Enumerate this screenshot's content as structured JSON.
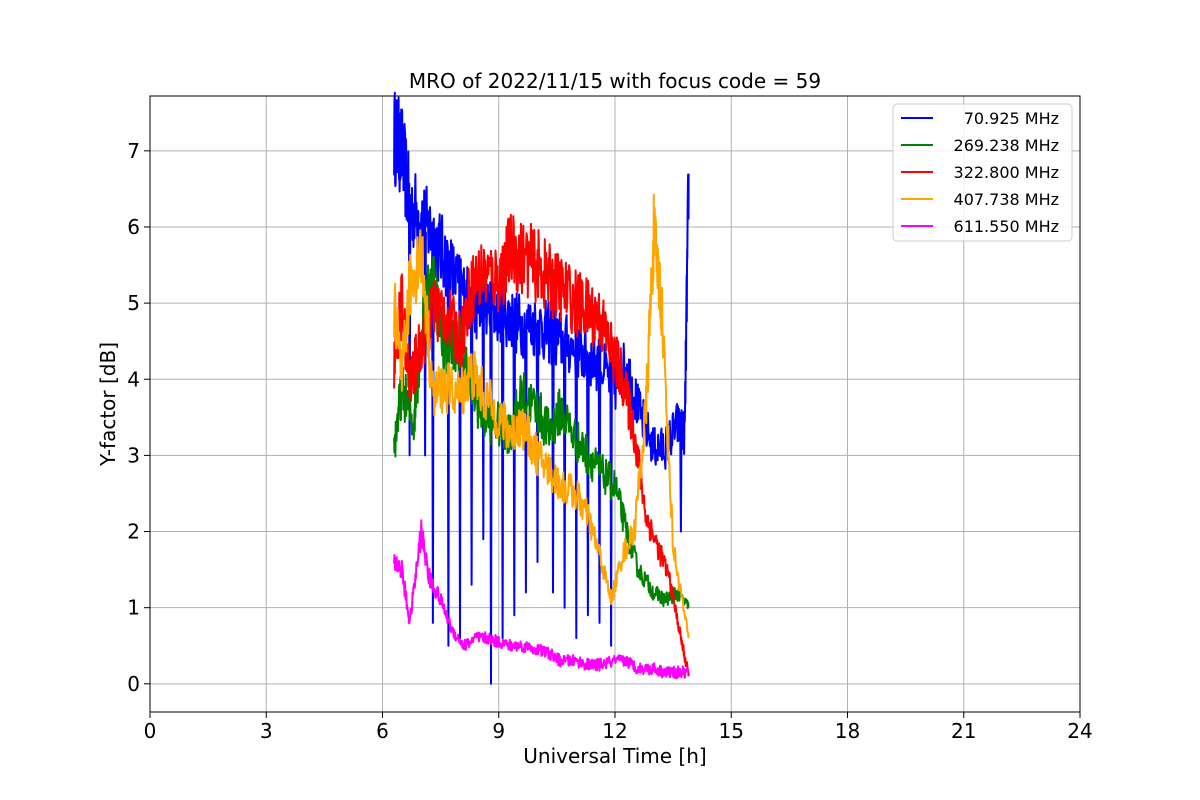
{
  "chart_data": {
    "type": "line",
    "title": "MRO of 2022/11/15 with focus code = 59",
    "xlabel": "Universal Time [h]",
    "ylabel": "Y-factor [dB]",
    "xlim": [
      0,
      24
    ],
    "ylim": [
      -0.37,
      7.72
    ],
    "xticks": [
      0,
      3,
      6,
      9,
      12,
      15,
      18,
      21,
      24
    ],
    "yticks": [
      0,
      1,
      2,
      3,
      4,
      5,
      6,
      7
    ],
    "grid": true,
    "legend_position": "top-right",
    "series": [
      {
        "name": "70.925 MHz",
        "color": "#0000ff",
        "x": [
          6.3,
          6.5,
          6.7,
          7.0,
          7.3,
          7.6,
          8.0,
          8.3,
          8.6,
          9.0,
          9.3,
          9.6,
          10.0,
          10.3,
          10.6,
          11.0,
          11.3,
          11.6,
          12.0,
          12.3,
          12.6,
          13.0,
          13.3,
          13.6,
          13.8,
          13.9
        ],
        "y": [
          7.2,
          7.0,
          6.3,
          6.1,
          5.9,
          5.6,
          5.2,
          5.0,
          4.9,
          4.9,
          4.8,
          4.7,
          4.7,
          4.6,
          4.5,
          4.4,
          4.3,
          4.2,
          3.9,
          4.2,
          3.6,
          3.1,
          3.1,
          3.4,
          3.3,
          6.7
        ],
        "dips": [
          {
            "x": 6.7,
            "y": 3.0
          },
          {
            "x": 7.1,
            "y": 3.0
          },
          {
            "x": 7.3,
            "y": 0.8
          },
          {
            "x": 7.7,
            "y": 0.5
          },
          {
            "x": 8.0,
            "y": 0.6
          },
          {
            "x": 8.3,
            "y": 1.3
          },
          {
            "x": 8.6,
            "y": 1.9
          },
          {
            "x": 8.8,
            "y": 0.0
          },
          {
            "x": 9.1,
            "y": 0.6
          },
          {
            "x": 9.4,
            "y": 0.9
          },
          {
            "x": 9.7,
            "y": 1.2
          },
          {
            "x": 10.0,
            "y": 1.6
          },
          {
            "x": 10.4,
            "y": 1.2
          },
          {
            "x": 10.7,
            "y": 1.0
          },
          {
            "x": 11.0,
            "y": 0.6
          },
          {
            "x": 11.3,
            "y": 0.9
          },
          {
            "x": 11.6,
            "y": 0.8
          },
          {
            "x": 11.9,
            "y": 0.5
          },
          {
            "x": 13.7,
            "y": 2.0
          }
        ]
      },
      {
        "name": "269.238 MHz",
        "color": "#008000",
        "x": [
          6.3,
          6.5,
          6.8,
          7.0,
          7.3,
          7.6,
          8.0,
          8.3,
          8.6,
          9.0,
          9.3,
          9.6,
          10.0,
          10.3,
          10.6,
          11.0,
          11.3,
          11.6,
          12.0,
          12.3,
          12.6,
          13.0,
          13.3,
          13.6,
          13.9
        ],
        "y": [
          3.1,
          3.9,
          3.4,
          4.6,
          5.4,
          4.4,
          4.5,
          3.9,
          3.5,
          3.4,
          3.3,
          3.8,
          3.6,
          3.3,
          3.6,
          3.2,
          3.0,
          2.8,
          2.6,
          2.0,
          1.5,
          1.2,
          1.1,
          1.2,
          1.0
        ]
      },
      {
        "name": "322.800 MHz",
        "color": "#ff0000",
        "x": [
          6.3,
          6.5,
          6.7,
          7.0,
          7.3,
          7.6,
          8.0,
          8.3,
          8.6,
          9.0,
          9.3,
          9.6,
          10.0,
          10.3,
          10.6,
          11.0,
          11.3,
          11.6,
          11.9,
          12.2,
          12.5,
          12.8,
          13.1,
          13.4,
          13.7,
          13.9
        ],
        "y": [
          4.2,
          5.0,
          3.9,
          4.5,
          4.9,
          4.9,
          4.5,
          5.2,
          5.4,
          5.3,
          5.7,
          5.6,
          5.5,
          5.3,
          5.2,
          5.0,
          4.9,
          4.8,
          4.4,
          4.0,
          3.3,
          2.2,
          1.8,
          1.4,
          0.6,
          0.1
        ]
      },
      {
        "name": "407.738 MHz",
        "color": "#ffa500",
        "x": [
          6.3,
          6.5,
          6.7,
          7.0,
          7.3,
          7.6,
          8.0,
          8.3,
          8.6,
          9.0,
          9.3,
          9.6,
          10.0,
          10.3,
          10.6,
          11.0,
          11.3,
          11.6,
          11.9,
          12.2,
          12.5,
          12.8,
          13.0,
          13.2,
          13.5,
          13.9
        ],
        "y": [
          5.0,
          4.0,
          5.2,
          5.7,
          3.8,
          3.9,
          3.8,
          4.1,
          3.8,
          3.5,
          3.3,
          3.4,
          3.0,
          2.8,
          2.6,
          2.5,
          2.2,
          1.7,
          1.1,
          1.7,
          2.0,
          3.6,
          5.9,
          5.0,
          1.8,
          0.6
        ]
      },
      {
        "name": "611.550 MHz",
        "color": "#ff00ff",
        "x": [
          6.3,
          6.5,
          6.7,
          7.0,
          7.2,
          7.5,
          7.8,
          8.1,
          8.4,
          8.7,
          9.0,
          9.3,
          9.6,
          10.0,
          10.3,
          10.6,
          11.0,
          11.3,
          11.6,
          12.0,
          12.3,
          12.6,
          13.0,
          13.3,
          13.6,
          13.9
        ],
        "y": [
          1.6,
          1.5,
          0.8,
          2.0,
          1.4,
          1.1,
          0.7,
          0.5,
          0.6,
          0.6,
          0.55,
          0.5,
          0.5,
          0.45,
          0.4,
          0.3,
          0.3,
          0.25,
          0.25,
          0.3,
          0.3,
          0.2,
          0.2,
          0.15,
          0.15,
          0.15
        ]
      }
    ]
  }
}
